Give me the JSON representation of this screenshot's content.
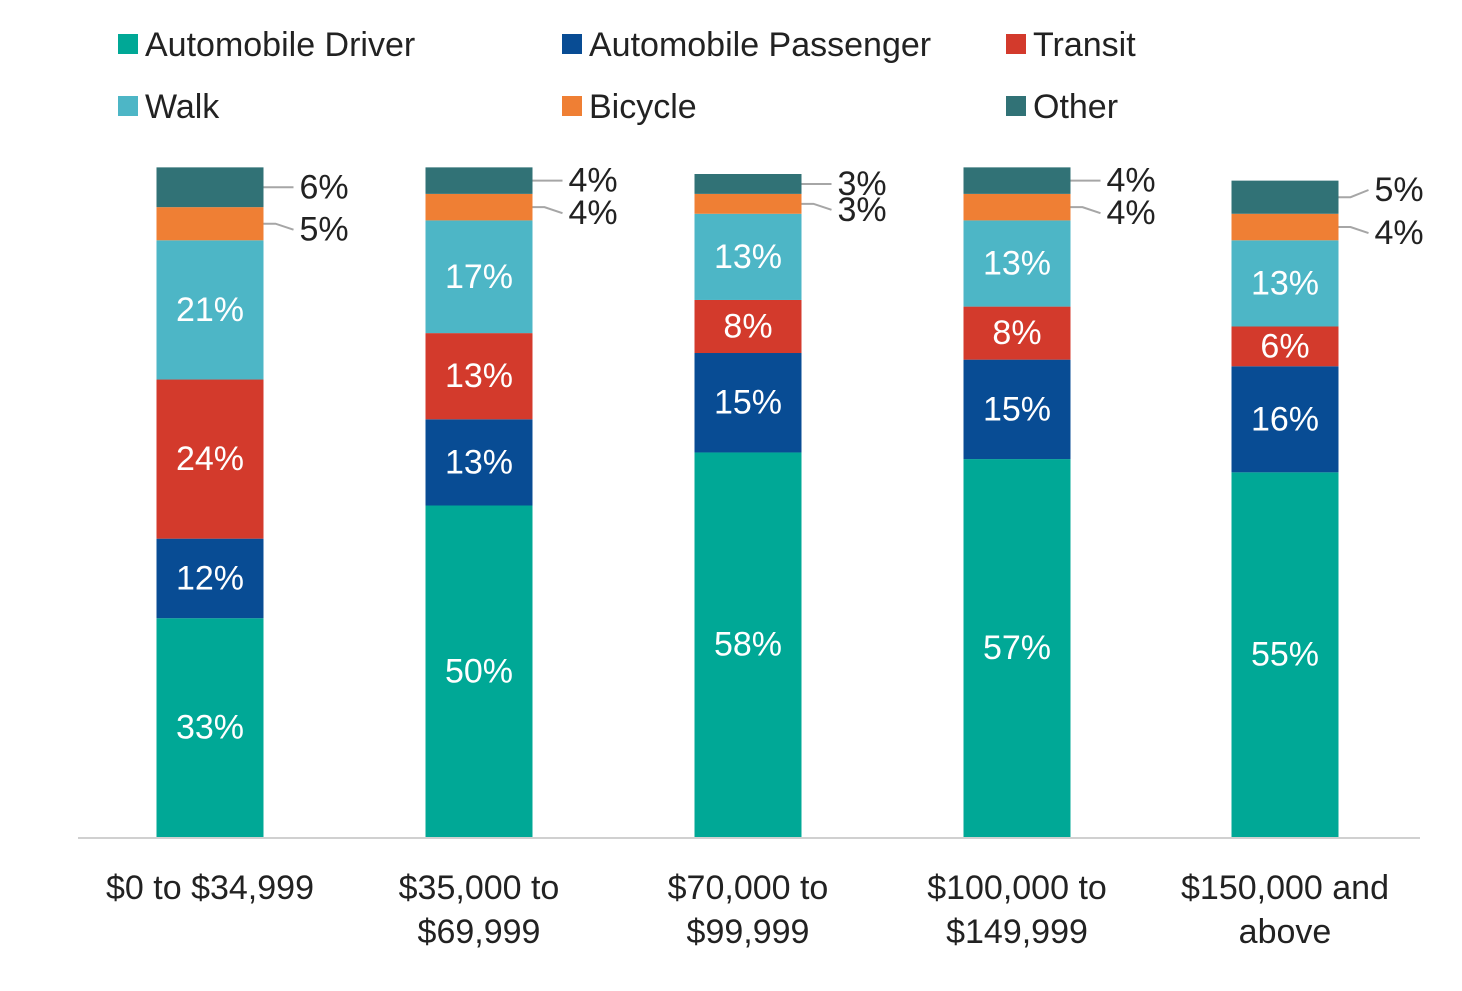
{
  "chart_data": {
    "type": "bar",
    "stacked": true,
    "orientation": "vertical",
    "categories": [
      [
        "$0 to $34,999"
      ],
      [
        "$35,000 to",
        "$69,999"
      ],
      [
        "$70,000 to",
        "$99,999"
      ],
      [
        "$100,000 to",
        "$149,999"
      ],
      [
        "$150,000 and",
        "above"
      ]
    ],
    "series": [
      {
        "name": "Automobile Driver",
        "color": "#00a896",
        "values": [
          33,
          50,
          58,
          57,
          55
        ],
        "labels": [
          "33%",
          "50%",
          "58%",
          "57%",
          "55%"
        ]
      },
      {
        "name": "Automobile Passenger",
        "color": "#084c94",
        "values": [
          12,
          13,
          15,
          15,
          16
        ],
        "labels": [
          "12%",
          "13%",
          "15%",
          "15%",
          "16%"
        ]
      },
      {
        "name": "Transit",
        "color": "#d33a2c",
        "values": [
          24,
          13,
          8,
          8,
          6
        ],
        "labels": [
          "24%",
          "13%",
          "8%",
          "8%",
          "6%"
        ]
      },
      {
        "name": "Walk",
        "color": "#4db6c6",
        "values": [
          21,
          17,
          13,
          13,
          13
        ],
        "labels": [
          "21%",
          "17%",
          "13%",
          "13%",
          "13%"
        ]
      },
      {
        "name": "Bicycle",
        "color": "#ef7f34",
        "values": [
          5,
          4,
          3,
          4,
          4
        ],
        "labels": [
          "5%",
          "4%",
          "3%",
          "4%",
          "4%"
        ]
      },
      {
        "name": "Other",
        "color": "#317276",
        "values": [
          6,
          4,
          3,
          4,
          5
        ],
        "labels": [
          "6%",
          "4%",
          "3%",
          "4%",
          "5%"
        ]
      }
    ],
    "legend_placement": "top",
    "grid": false,
    "axis_line_color": "#d0d0d0"
  }
}
